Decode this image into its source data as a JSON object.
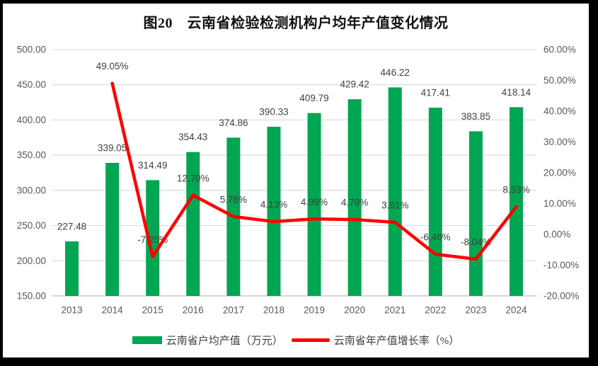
{
  "frame": {
    "background": "#000000",
    "page_background": "#FFFFFF"
  },
  "chart_data": {
    "type": "bar",
    "subtype": "combo-bar-line",
    "title": "图20　云南省检验检测机构户均年产值变化情况",
    "categories": [
      "2013",
      "2014",
      "2015",
      "2016",
      "2017",
      "2018",
      "2019",
      "2020",
      "2021",
      "2022",
      "2023",
      "2024"
    ],
    "series": [
      {
        "name": "云南省户均产值（万元）",
        "chart_type": "bar",
        "axis": "left",
        "color": "#00A651",
        "values": [
          227.48,
          339.05,
          314.49,
          354.43,
          374.86,
          390.33,
          409.79,
          429.42,
          446.22,
          417.41,
          383.85,
          418.14
        ],
        "labels": [
          "227.48",
          "339.05",
          "314.49",
          "354.43",
          "374.86",
          "390.33",
          "409.79",
          "429.42",
          "446.22",
          "417.41",
          "383.85",
          "418.14"
        ]
      },
      {
        "name": "云南省年产值增长率（%）",
        "chart_type": "line",
        "axis": "right",
        "color": "#FF0000",
        "values": [
          null,
          49.05,
          -7.25,
          12.7,
          5.76,
          4.13,
          4.99,
          4.79,
          3.91,
          -6.46,
          -8.04,
          8.93
        ],
        "labels": [
          null,
          "49.05%",
          "-7.25%",
          "12.70%",
          "5.76%",
          "4.13%",
          "4.99%",
          "4.79%",
          "3.91%",
          "-6.46%",
          "-8.04%",
          "8.93%"
        ]
      }
    ],
    "left_axis": {
      "min": 150,
      "max": 500,
      "step": 50,
      "tick_labels": [
        "500.00",
        "450.00",
        "400.00",
        "350.00",
        "300.00",
        "250.00",
        "200.00",
        "150.00"
      ]
    },
    "right_axis": {
      "min": -20,
      "max": 60,
      "step": 10,
      "tick_labels": [
        "60.00%",
        "50.00%",
        "40.00%",
        "30.00%",
        "20.00%",
        "10.00%",
        "0.00%",
        "-10.00%",
        "-20.00%"
      ]
    },
    "grid": true,
    "legend_position": "bottom",
    "style": {
      "grid_color": "#DCDCDC",
      "axis_line_color": "#BFBFBF",
      "tick_text_color": "#595959",
      "data_label_color": "#404040"
    }
  }
}
